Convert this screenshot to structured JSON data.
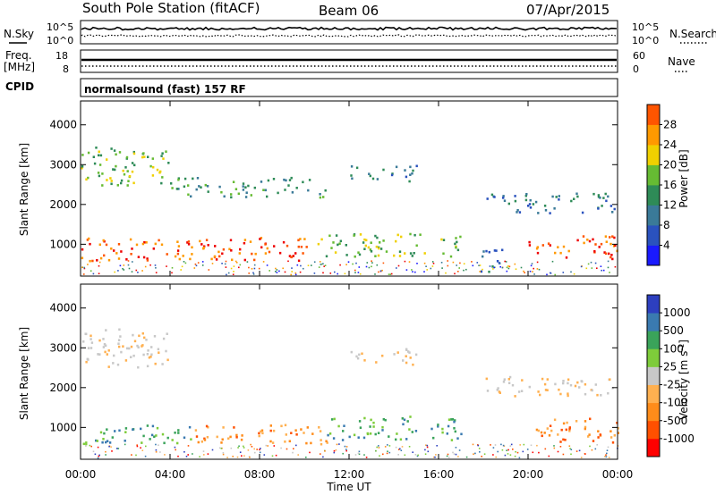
{
  "header": {
    "title": "South Pole Station (fitACF)",
    "beam": "Beam 06",
    "date": "07/Apr/2015"
  },
  "side_labels": {
    "nsky": "N.Sky",
    "nsearch": "N.Search",
    "freq": "Freq.",
    "freq_unit": "[MHz]",
    "nave": "Nave",
    "cpid": "CPID"
  },
  "strip_ticks": {
    "noise_left_top": "10^5",
    "noise_left_bottom": "10^0",
    "noise_right_top": "10^5",
    "noise_right_bottom": "10^0",
    "freq_top": "18",
    "freq_bottom": "8",
    "nave_top": "60",
    "nave_bottom": "0"
  },
  "cpid_text": "normalsound (fast) 157 RF",
  "colors": {
    "power_scale": [
      "#1a1aff",
      "#2a52be",
      "#3a7a98",
      "#2e8b57",
      "#66bb33",
      "#f0d000",
      "#ff9900",
      "#ff5500",
      "#ee0000"
    ],
    "velocity_scale": [
      "#ff0000",
      "#ff5000",
      "#ff8c1a",
      "#ffb050",
      "#c8c8c8",
      "#7ecc3a",
      "#3aa35a",
      "#3a7ab0",
      "#2d3fbf"
    ]
  },
  "chart_data": [
    {
      "type": "heatmap",
      "panel": "power",
      "ylabel": "Slant Range [km]",
      "xlabel": "",
      "ylim": [
        200,
        4600
      ],
      "yticks": [
        "1000",
        "2000",
        "3000",
        "4000"
      ],
      "colorbar_label": "Power [dB]",
      "colorbar_ticks": [
        "4",
        "8",
        "12",
        "16",
        "20",
        "24",
        "28"
      ],
      "colorbar_range": [
        0,
        32
      ],
      "regions": [
        {
          "t0": 0.0,
          "t1": 10.5,
          "r0": 600,
          "r1": 1200,
          "level": 28
        },
        {
          "t0": 10.5,
          "t1": 17.0,
          "r0": 700,
          "r1": 1300,
          "level": 14
        },
        {
          "t0": 20.0,
          "t1": 24.0,
          "r0": 650,
          "r1": 1250,
          "level": 26
        },
        {
          "t0": 0.0,
          "t1": 4.0,
          "r0": 2500,
          "r1": 3500,
          "level": 14
        },
        {
          "t0": 4.0,
          "t1": 11.0,
          "r0": 2200,
          "r1": 2700,
          "level": 12
        },
        {
          "t0": 12.0,
          "t1": 15.0,
          "r0": 2600,
          "r1": 3000,
          "level": 6
        },
        {
          "t0": 18.0,
          "t1": 24.0,
          "r0": 1800,
          "r1": 2300,
          "level": 6
        },
        {
          "t0": 17.8,
          "t1": 19.0,
          "r0": 300,
          "r1": 900,
          "level": 6
        }
      ]
    },
    {
      "type": "heatmap",
      "panel": "velocity",
      "ylabel": "Slant Range [km]",
      "xlabel": "Time UT",
      "ylim": [
        200,
        4600
      ],
      "yticks": [
        "1000",
        "2000",
        "3000",
        "4000"
      ],
      "xticks": [
        "00:00",
        "04:00",
        "08:00",
        "12:00",
        "16:00",
        "20:00",
        "00:00"
      ],
      "colorbar_label": "Velocity [m s^-1]",
      "colorbar_ticks": [
        "-1000",
        "-500",
        "-100",
        "-25",
        "25",
        "100",
        "500",
        "1000"
      ],
      "regions": [
        {
          "t0": 0.0,
          "t1": 5.0,
          "r0": 600,
          "r1": 1100,
          "level": "green"
        },
        {
          "t0": 5.0,
          "t1": 11.0,
          "r0": 600,
          "r1": 1100,
          "level": "orange"
        },
        {
          "t0": 11.0,
          "t1": 17.0,
          "r0": 700,
          "r1": 1300,
          "level": "green"
        },
        {
          "t0": 20.0,
          "t1": 24.0,
          "r0": 650,
          "r1": 1250,
          "level": "orange"
        },
        {
          "t0": 0.0,
          "t1": 4.0,
          "r0": 2500,
          "r1": 3500,
          "level": "grey"
        },
        {
          "t0": 12.0,
          "t1": 15.0,
          "r0": 2600,
          "r1": 3000,
          "level": "grey"
        },
        {
          "t0": 18.0,
          "t1": 24.0,
          "r0": 1800,
          "r1": 2300,
          "level": "grey"
        }
      ]
    }
  ]
}
